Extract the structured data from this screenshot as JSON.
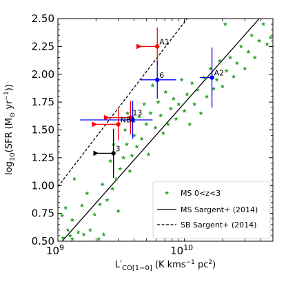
{
  "chart_data": {
    "type": "scatter",
    "title": "",
    "xlabel": "L′_CO[1−0] (K kms⁻¹ pc²)",
    "xlabel_parts": {
      "main": "L′",
      "sub": "CO[1−0]",
      "rest": " (K kms",
      "sup1": "−1",
      "rest2": " pc",
      "sup2": "2",
      "end": ")"
    },
    "ylabel": "log₁₀(SFR (M⊙ yr⁻¹))",
    "ylabel_parts": {
      "a": "log",
      "b": "10",
      "c": "(SFR (M",
      "d": "⊙",
      "e": " yr",
      "f": "−1",
      "g": "))"
    },
    "xscale": "log",
    "xlim": [
      1000000000.0,
      50000000000.0
    ],
    "ylim": [
      0.5,
      2.5
    ],
    "x_tick_values": [
      1000000000.0,
      10000000000.0
    ],
    "x_tick_labels": [
      {
        "base": "10",
        "exp": "9"
      },
      {
        "base": "10",
        "exp": "10"
      }
    ],
    "y_ticks": [
      "0.50",
      "0.75",
      "1.00",
      "1.25",
      "1.50",
      "1.75",
      "2.00",
      "2.25",
      "2.50"
    ],
    "y_tick_values": [
      0.5,
      0.75,
      1.0,
      1.25,
      1.5,
      1.75,
      2.0,
      2.25,
      2.5
    ],
    "colors": {
      "ms": "#2ca02c",
      "red": "#ff0000",
      "blue": "#0000ff",
      "black": "#000000"
    },
    "lines": [
      {
        "name": "MS Sargent+ (2014)",
        "style": "solid",
        "points": [
          [
            1080000000.0,
            0.5
          ],
          [
            39000000000.0,
            2.5
          ]
        ]
      },
      {
        "name": "SB Sargent+ (2014)",
        "style": "dashed",
        "points": [
          [
            1000000000.0,
            0.99
          ],
          [
            10500000000.0,
            2.5
          ]
        ]
      }
    ],
    "legend": {
      "position": "bottom-right",
      "entries": [
        {
          "label": "MS 0<z<3",
          "marker": "star"
        },
        {
          "label": "MS Sargent+ (2014)",
          "marker": "solid-line"
        },
        {
          "label": "SB Sargent+ (2014)",
          "marker": "dashed-line"
        }
      ]
    },
    "series": [
      {
        "name": "MS 0<z<3",
        "color": "#2ca02c",
        "marker": "star",
        "points": [
          [
            1100000000.0,
            0.53
          ],
          [
            1080000000.0,
            0.73
          ],
          [
            1150000000.0,
            0.8
          ],
          [
            1200000000.0,
            0.6
          ],
          [
            1250000000.0,
            0.55
          ],
          [
            1300000000.0,
            0.69
          ],
          [
            1350000000.0,
            1.06
          ],
          [
            1300000000.0,
            0.52
          ],
          [
            1450000000.0,
            0.58
          ],
          [
            1550000000.0,
            0.82
          ],
          [
            1600000000.0,
            0.56
          ],
          [
            1700000000.0,
            0.93
          ],
          [
            1800000000.0,
            0.6
          ],
          [
            1950000000.0,
            0.74
          ],
          [
            2100000000.0,
            0.52
          ],
          [
            2150000000.0,
            0.83
          ],
          [
            2250000000.0,
            1.01
          ],
          [
            2300000000.0,
            0.56
          ],
          [
            2450000000.0,
            0.87
          ],
          [
            2600000000.0,
            1.22
          ],
          [
            2700000000.0,
            0.97
          ],
          [
            2750000000.0,
            1.37
          ],
          [
            2900000000.0,
            1.06
          ],
          [
            3000000000.0,
            0.77
          ],
          [
            3100000000.0,
            1.15
          ],
          [
            3300000000.0,
            1.25
          ],
          [
            3400000000.0,
            1.5
          ],
          [
            3500000000.0,
            1.37
          ],
          [
            3550000000.0,
            1.65
          ],
          [
            3700000000.0,
            1.13
          ],
          [
            3850000000.0,
            1.27
          ],
          [
            4000000000.0,
            1.45
          ],
          [
            4200000000.0,
            1.35
          ],
          [
            4400000000.0,
            1.62
          ],
          [
            4600000000.0,
            1.42
          ],
          [
            4800000000.0,
            1.73
          ],
          [
            5000000000.0,
            1.55
          ],
          [
            5200000000.0,
            1.28
          ],
          [
            5400000000.0,
            1.65
          ],
          [
            5600000000.0,
            1.9
          ],
          [
            5900000000.0,
            1.52
          ],
          [
            6200000000.0,
            1.75
          ],
          [
            6500000000.0,
            1.63
          ],
          [
            6800000000.0,
            1.47
          ],
          [
            7100000000.0,
            1.84
          ],
          [
            7400000000.0,
            1.55
          ],
          [
            7800000000.0,
            1.69
          ],
          [
            8200000000.0,
            1.78
          ],
          [
            8600000000.0,
            1.6
          ],
          [
            9000000000.0,
            1.73
          ],
          [
            9500000000.0,
            1.95
          ],
          [
            10000000000.0,
            1.67
          ],
          [
            10500000000.0,
            1.82
          ],
          [
            11000000000.0,
            1.55
          ],
          [
            11500000000.0,
            1.92
          ],
          [
            12000000000.0,
            1.73
          ],
          [
            12700000000.0,
            1.86
          ],
          [
            13500000000.0,
            1.65
          ],
          [
            14200000000.0,
            1.97
          ],
          [
            15000000000.0,
            1.8
          ],
          [
            16000000000.0,
            2.05
          ],
          [
            17000000000.0,
            1.87
          ],
          [
            18000000000.0,
            1.95
          ],
          [
            19000000000.0,
            2.12
          ],
          [
            20000000000.0,
            1.89
          ],
          [
            21500000000.0,
            2.03
          ],
          [
            23000000000.0,
            2.15
          ],
          [
            24500000000.0,
            1.98
          ],
          [
            26000000000.0,
            2.1
          ],
          [
            28000000000.0,
            2.25
          ],
          [
            30000000000.0,
            2.05
          ],
          [
            32000000000.0,
            2.2
          ],
          [
            34000000000.0,
            2.35
          ],
          [
            36000000000.0,
            2.15
          ],
          [
            39000000000.0,
            2.3
          ],
          [
            42000000000.0,
            2.45
          ],
          [
            45000000000.0,
            2.27
          ],
          [
            48000000000.0,
            2.33
          ],
          [
            21000000000.0,
            2.45
          ],
          [
            27000000000.0,
            2.52
          ]
        ]
      },
      {
        "name": "red",
        "color": "#ff0000",
        "marker": "circle",
        "points": [
          {
            "label": "A1",
            "x": 6100000000.0,
            "y": 2.25,
            "xerr": [
              1600000000.0,
              0
            ],
            "yerr": [
              0.17,
              0.17
            ],
            "arrow": "left"
          },
          {
            "label": "NB1",
            "x": 3000000000.0,
            "y": 1.55,
            "xerr": [
              1000000000.0,
              0
            ],
            "yerr": [
              0.14,
              0.14
            ],
            "arrow": "left"
          },
          {
            "label": "13",
            "x": 3750000000.0,
            "y": 1.61,
            "xerr": [
              1250000000.0,
              0
            ],
            "yerr": [
              0.15,
              0.15
            ],
            "arrow": "left"
          }
        ]
      },
      {
        "name": "blue",
        "color": "#0000ff",
        "marker": "circle",
        "points": [
          {
            "label": "6",
            "x": 6100000000.0,
            "y": 1.95,
            "xerr": [
              1600000000.0,
              2500000000.0
            ],
            "yerr": [
              0.17,
              0.17
            ]
          },
          {
            "label": "A2",
            "x": 16500000000.0,
            "y": 1.97,
            "xerr": [
              3300000000.0,
              0
            ],
            "yerr": [
              0.27,
              0.27
            ]
          },
          {
            "label": "",
            "x": 3900000000.0,
            "y": 1.59,
            "xerr": [
              2400000000.0,
              1700000000.0
            ],
            "yerr": [
              0.17,
              0.17
            ]
          }
        ]
      },
      {
        "name": "black",
        "color": "#000000",
        "marker": "circle",
        "points": [
          {
            "label": "3",
            "x": 2750000000.0,
            "y": 1.29,
            "xerr": [
              700000000.0,
              0
            ],
            "yerr": [
              0.22,
              0.22
            ],
            "arrow": "left"
          }
        ]
      }
    ]
  }
}
